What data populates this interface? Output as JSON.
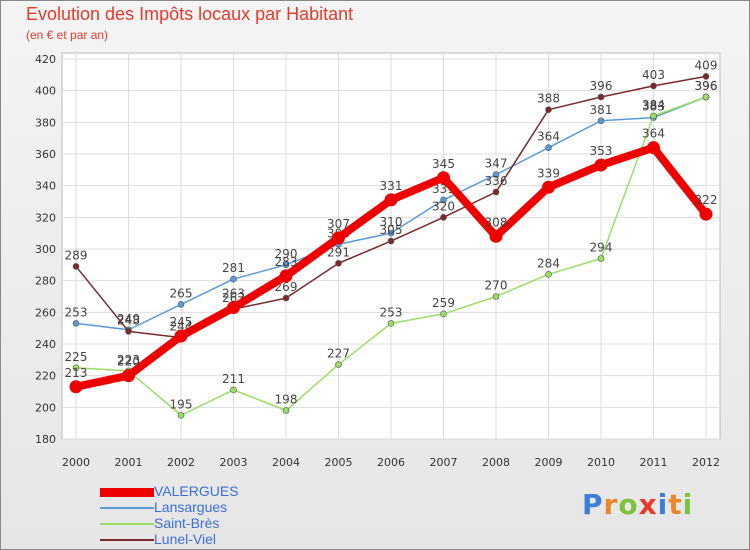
{
  "header": {
    "title": "Evolution des Impôts locaux par Habitant",
    "subtitle": "(en € et par an)"
  },
  "chart_data": {
    "type": "line",
    "title": "Evolution des Impôts locaux par Habitant",
    "subtitle": "(en € et par an)",
    "xlabel": "",
    "ylabel": "",
    "x": [
      "2000",
      "2001",
      "2002",
      "2003",
      "2004",
      "2005",
      "2006",
      "2007",
      "2008",
      "2009",
      "2010",
      "2011",
      "2012"
    ],
    "ylim": [
      180,
      420
    ],
    "yticks": [
      180,
      200,
      220,
      240,
      260,
      280,
      300,
      320,
      340,
      360,
      380,
      400,
      420
    ],
    "grid": true,
    "legend_position": "bottom-left",
    "series": [
      {
        "name": "VALERGUES",
        "color": "#ee0000",
        "values": [
          213,
          220,
          245,
          263,
          283,
          307,
          331,
          345,
          308,
          339,
          353,
          364,
          322
        ]
      },
      {
        "name": "Lansargues",
        "color": "#5b9bd5",
        "values": [
          253,
          249,
          265,
          281,
          290,
          303,
          310,
          331,
          347,
          364,
          381,
          383,
          396
        ]
      },
      {
        "name": "Saint-Brès",
        "color": "#99dd66",
        "values": [
          225,
          223,
          195,
          211,
          198,
          227,
          253,
          259,
          270,
          284,
          294,
          384,
          396
        ]
      },
      {
        "name": "Lunel-Viel",
        "color": "#7a2a2a",
        "values": [
          289,
          248,
          244,
          262,
          269,
          291,
          305,
          320,
          336,
          388,
          396,
          403,
          409
        ]
      }
    ]
  },
  "logo": {
    "letters": [
      "P",
      "r",
      "o",
      "x",
      "i",
      "t",
      "i"
    ]
  }
}
